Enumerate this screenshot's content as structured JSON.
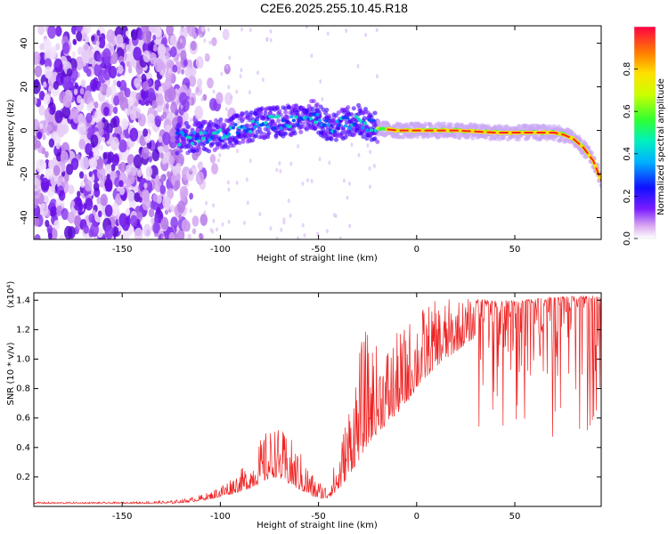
{
  "title": "C2E6.2025.255.10.45.R18",
  "chart_data": [
    {
      "type": "heatmap",
      "name": "spectrogram",
      "xlabel": "Height of straight line (km)",
      "ylabel": "Frequency (Hz)",
      "xlim": [
        -195,
        94
      ],
      "ylim": [
        -50,
        48
      ],
      "xticks": [
        -150,
        -100,
        -50,
        0,
        50
      ],
      "yticks": [
        -40,
        -20,
        0,
        20,
        40
      ],
      "colorbar": {
        "label": "Normalized spectral amplitude",
        "range": [
          0,
          1
        ],
        "ticks": [
          0.0,
          0.2,
          0.4,
          0.6,
          0.8
        ],
        "tick_labels": [
          "0.0",
          "0.2",
          "0.4",
          "0.6",
          "0.8"
        ]
      },
      "ridge": {
        "x": [
          -122,
          -110,
          -100,
          -90,
          -80,
          -70,
          -60,
          -52,
          -45,
          -38,
          -30,
          -25,
          -20,
          -10,
          0,
          20,
          40,
          60,
          70,
          75,
          80,
          85,
          90,
          94
        ],
        "y": [
          -4,
          -3,
          -2,
          1,
          3,
          4,
          5,
          7,
          2,
          3,
          5,
          3,
          1,
          0,
          0,
          0,
          -1,
          -1,
          -1,
          -2,
          -4,
          -8,
          -14,
          -23
        ]
      },
      "noise_region_x": [
        -195,
        -120
      ]
    },
    {
      "type": "line",
      "name": "snr",
      "xlabel": "Height of straight line (km)",
      "ylabel": "SNR (10 * v/v)",
      "yscale_note": "(x10⁴)",
      "xlim": [
        -195,
        94
      ],
      "ylim": [
        0,
        1.45
      ],
      "xticks": [
        -150,
        -100,
        -50,
        0,
        50
      ],
      "yticks": [
        0.2,
        0.4,
        0.6,
        0.8,
        1.0,
        1.2,
        1.4
      ],
      "ytick_labels": [
        "0.2",
        "0.4",
        "0.6",
        "0.8",
        "1.0",
        "1.2",
        "1.4"
      ],
      "color": "#ee2222",
      "envelope": {
        "x": [
          -195,
          -150,
          -125,
          -115,
          -105,
          -95,
          -85,
          -78,
          -72,
          -65,
          -58,
          -52,
          -46,
          -40,
          -35,
          -30,
          -26,
          -20,
          -12,
          -5,
          0,
          10,
          20,
          30,
          40,
          50,
          60,
          70,
          80,
          90,
          94
        ],
        "base": [
          0.02,
          0.02,
          0.02,
          0.03,
          0.05,
          0.08,
          0.12,
          0.17,
          0.2,
          0.15,
          0.1,
          0.06,
          0.05,
          0.1,
          0.2,
          0.3,
          0.4,
          0.5,
          0.6,
          0.7,
          0.8,
          0.95,
          1.05,
          1.15,
          1.22,
          1.27,
          1.3,
          1.32,
          1.34,
          1.35,
          1.35
        ],
        "peak": [
          0.03,
          0.03,
          0.04,
          0.06,
          0.1,
          0.2,
          0.3,
          0.5,
          0.55,
          0.48,
          0.35,
          0.2,
          0.15,
          0.35,
          0.7,
          1.05,
          1.2,
          1.1,
          1.15,
          1.25,
          1.35,
          1.4,
          1.42,
          1.41,
          1.4,
          1.4,
          1.41,
          1.42,
          1.43,
          1.43,
          1.42
        ]
      }
    }
  ]
}
